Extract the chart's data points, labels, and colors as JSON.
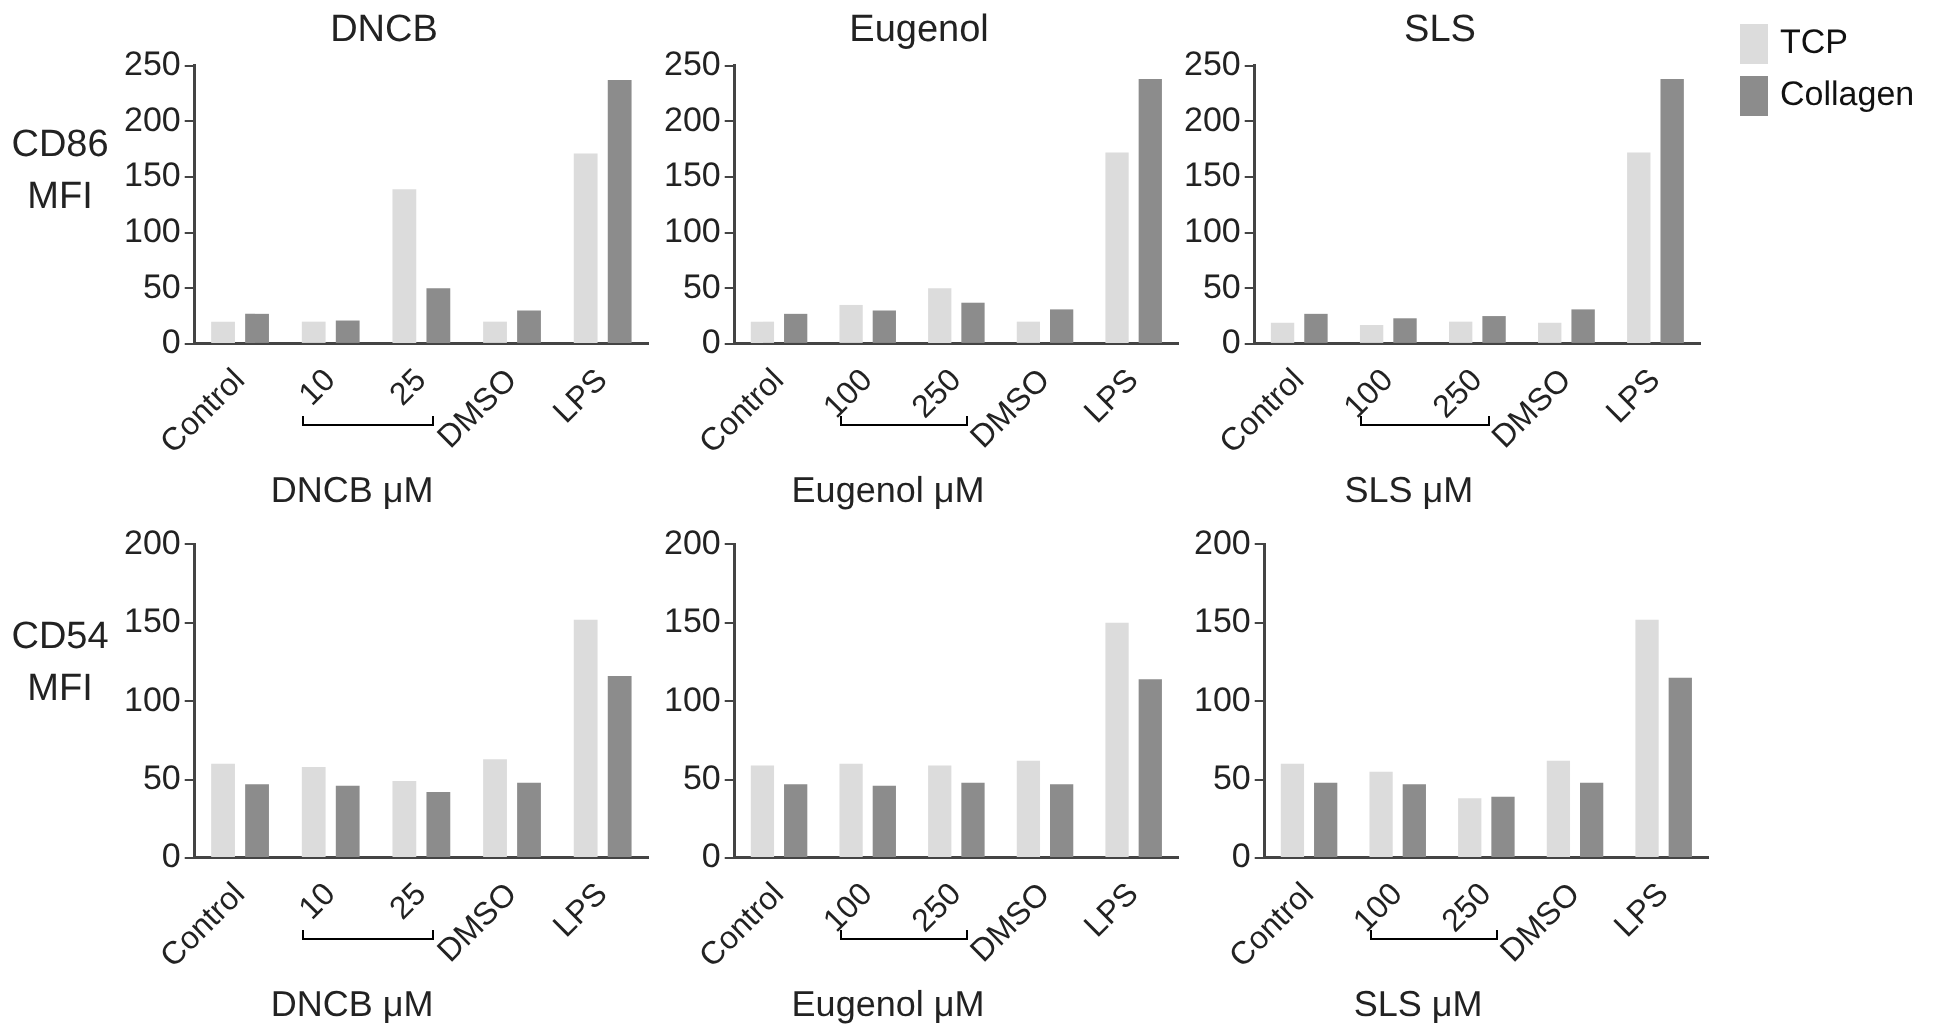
{
  "chart_data": [
    {
      "type": "bar",
      "title": "DNCB",
      "ylabel": "CD86 MFI",
      "xlabel": "DNCB μM",
      "categories": [
        "Control",
        "10",
        "25",
        "DMSO",
        "LPS"
      ],
      "series": [
        {
          "color": "#dcdcdc",
          "values": [
            20,
            20,
            139,
            20,
            171
          ]
        },
        {
          "color": "#8c8c8c",
          "values": [
            27,
            21,
            50,
            30,
            237
          ]
        }
      ],
      "ylim": [
        0,
        250
      ],
      "yticks": [
        0,
        50,
        100,
        150,
        200,
        250
      ],
      "grid": false,
      "legend": false
    },
    {
      "type": "bar",
      "title": "Eugenol",
      "xlabel": "Eugenol μM",
      "categories": [
        "Control",
        "100",
        "250",
        "DMSO",
        "LPS"
      ],
      "series": [
        {
          "color": "#dcdcdc",
          "values": [
            20,
            35,
            50,
            20,
            172
          ]
        },
        {
          "color": "#8c8c8c",
          "values": [
            27,
            30,
            37,
            31,
            238
          ]
        }
      ],
      "ylim": [
        0,
        250
      ],
      "yticks": [
        0,
        50,
        100,
        150,
        200,
        250
      ],
      "grid": false,
      "legend": false
    },
    {
      "type": "bar",
      "title": "SLS",
      "xlabel": "SLS μM",
      "categories": [
        "Control",
        "100",
        "250",
        "DMSO",
        "LPS"
      ],
      "series": [
        {
          "name": "TCP",
          "color": "#dcdcdc",
          "values": [
            19,
            17,
            20,
            19,
            172
          ]
        },
        {
          "name": "Collagen",
          "color": "#8c8c8c",
          "values": [
            27,
            23,
            25,
            31,
            238
          ]
        }
      ],
      "ylim": [
        0,
        250
      ],
      "yticks": [
        0,
        50,
        100,
        150,
        200,
        250
      ],
      "grid": false,
      "legend": "top right"
    },
    {
      "type": "bar",
      "ylabel": "CD54 MFI",
      "xlabel": "DNCB μM",
      "categories": [
        "Control",
        "10",
        "25",
        "DMSO",
        "LPS"
      ],
      "series": [
        {
          "color": "#dcdcdc",
          "values": [
            60,
            58,
            49,
            63,
            152
          ]
        },
        {
          "color": "#8c8c8c",
          "values": [
            47,
            46,
            42,
            48,
            116
          ]
        }
      ],
      "ylim": [
        0,
        200
      ],
      "yticks": [
        0,
        50,
        100,
        150,
        200
      ],
      "grid": false,
      "legend": false
    },
    {
      "type": "bar",
      "xlabel": "Eugenol μM",
      "categories": [
        "Control",
        "100",
        "250",
        "DMSO",
        "LPS"
      ],
      "series": [
        {
          "color": "#dcdcdc",
          "values": [
            59,
            60,
            59,
            62,
            150
          ]
        },
        {
          "color": "#8c8c8c",
          "values": [
            47,
            46,
            48,
            47,
            114
          ]
        }
      ],
      "ylim": [
        0,
        200
      ],
      "yticks": [
        0,
        50,
        100,
        150,
        200
      ],
      "grid": false,
      "legend": false
    },
    {
      "type": "bar",
      "xlabel": "SLS μM",
      "categories": [
        "Control",
        "100",
        "250",
        "DMSO",
        "LPS"
      ],
      "series": [
        {
          "color": "#dcdcdc",
          "values": [
            60,
            55,
            38,
            62,
            152
          ]
        },
        {
          "color": "#8c8c8c",
          "values": [
            48,
            47,
            39,
            48,
            115
          ]
        }
      ],
      "ylim": [
        0,
        200
      ],
      "yticks": [
        0,
        50,
        100,
        150,
        200
      ],
      "grid": false,
      "legend": false
    }
  ]
}
